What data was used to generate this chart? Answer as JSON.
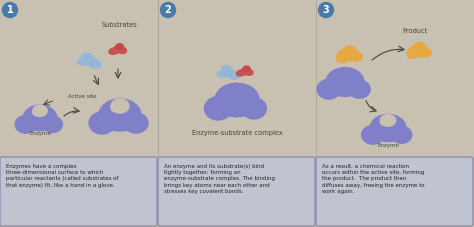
{
  "bg_color": "#c8c0b0",
  "text_box_bg": "#c0c4d0",
  "text_box_border": "#9090a8",
  "step_number_bg": "#4a7aaa",
  "enzyme_color": "#8080c8",
  "enzyme_shadow": "#6060a8",
  "substrate_blue": "#90b8d8",
  "substrate_red": "#c84848",
  "product_color": "#e8a840",
  "arrow_color": "#333333",
  "font_color": "#222222",
  "divider_color": "#b0a898",
  "label_color": "#444444",
  "panel1_label": "Substrates",
  "panel2_label": "Enzyme-substrate complex",
  "panel3_label": "Product",
  "active_site_label": "Active site",
  "enzyme_label": "Enzyme",
  "text1": "Enzymes have a complex\nthree-dimensional surface to which\nparticular reactants (called substrates of\nthat enzyme) fit, like a hand in a glove.",
  "text2": "An enzyme and its substrate(s) bind\ntightly together, forming an\nenzyme-substrate complex. The binding\nbrings key atoms near each other and\nstresses key covalent bonds.",
  "text3": "As a result, a chemical reaction\noccurs within the active site, forming\nthe product.  The product then\ndiffuses away, freeing the enzyme to\nwork again.",
  "step_numbers": [
    "1",
    "2",
    "3"
  ]
}
